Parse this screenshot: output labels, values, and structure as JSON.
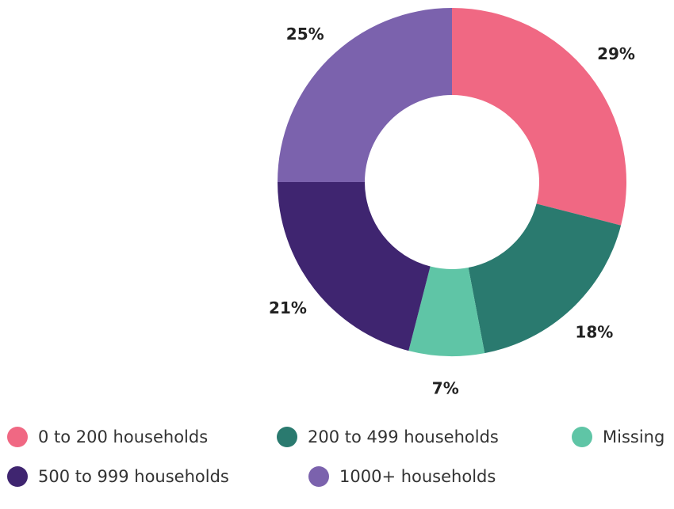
{
  "chart_data": {
    "type": "donut",
    "categories": [
      "0 to 200 households",
      "200 to 499 households",
      "Missing",
      "500 to 999 households",
      "1000+ households"
    ],
    "values": [
      29,
      18,
      7,
      21,
      25
    ],
    "value_labels": [
      "29%",
      "18%",
      "7%",
      "21%",
      "25%"
    ],
    "colors": [
      "#f06883",
      "#2a7a6f",
      "#5fc5a6",
      "#3f2570",
      "#7b62ad"
    ],
    "legend": "bottom"
  }
}
